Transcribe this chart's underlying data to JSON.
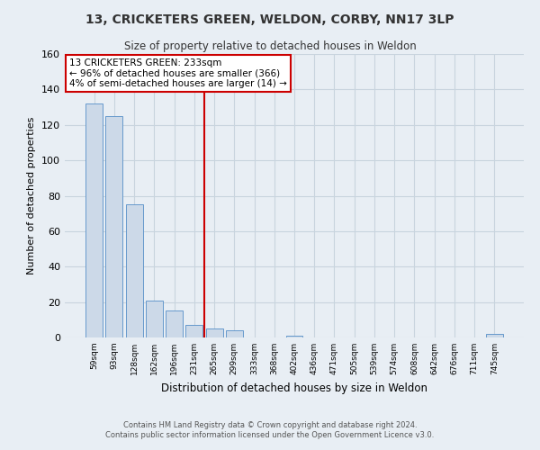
{
  "title": "13, CRICKETERS GREEN, WELDON, CORBY, NN17 3LP",
  "subtitle": "Size of property relative to detached houses in Weldon",
  "xlabel": "Distribution of detached houses by size in Weldon",
  "ylabel": "Number of detached properties",
  "bar_color": "#ccd9e8",
  "bar_edge_color": "#6699cc",
  "vline_color": "#cc0000",
  "vline_x": 5.5,
  "annotation_box_text": "13 CRICKETERS GREEN: 233sqm\n← 96% of detached houses are smaller (366)\n4% of semi-detached houses are larger (14) →",
  "categories": [
    "59sqm",
    "93sqm",
    "128sqm",
    "162sqm",
    "196sqm",
    "231sqm",
    "265sqm",
    "299sqm",
    "333sqm",
    "368sqm",
    "402sqm",
    "436sqm",
    "471sqm",
    "505sqm",
    "539sqm",
    "574sqm",
    "608sqm",
    "642sqm",
    "676sqm",
    "711sqm",
    "745sqm"
  ],
  "values": [
    132,
    125,
    75,
    21,
    15,
    7,
    5,
    4,
    0,
    0,
    1,
    0,
    0,
    0,
    0,
    0,
    0,
    0,
    0,
    0,
    2
  ],
  "ylim": [
    0,
    160
  ],
  "yticks": [
    0,
    20,
    40,
    60,
    80,
    100,
    120,
    140,
    160
  ],
  "footer_line1": "Contains HM Land Registry data © Crown copyright and database right 2024.",
  "footer_line2": "Contains public sector information licensed under the Open Government Licence v3.0.",
  "background_color": "#e8eef4",
  "plot_background_color": "#e8eef4",
  "grid_color": "#c8d4de"
}
